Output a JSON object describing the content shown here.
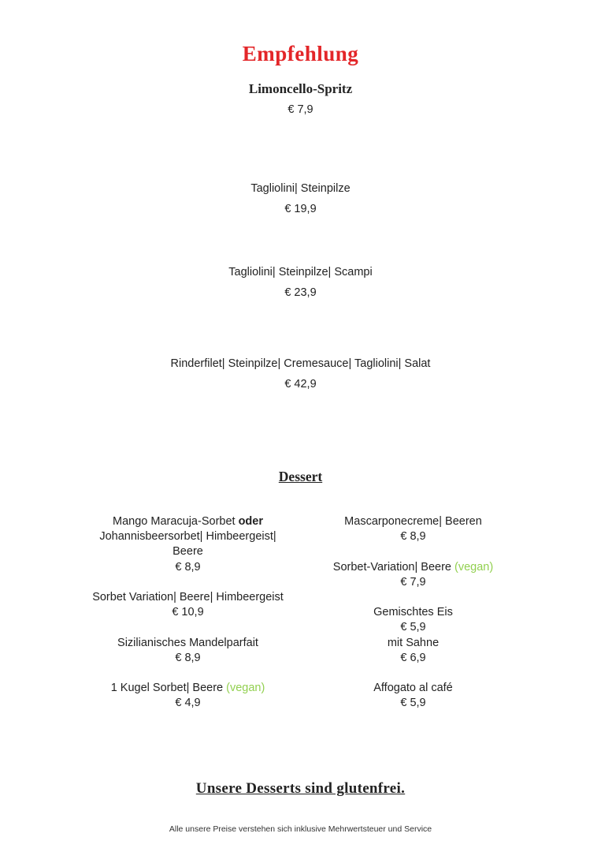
{
  "colors": {
    "accent_red": "#e32629",
    "vegan_green": "#92d050",
    "text": "#222222"
  },
  "header": {
    "title": "Empfehlung"
  },
  "recommendation": {
    "items": [
      {
        "name": "Limoncello-Spritz",
        "price": "€ 7,9"
      },
      {
        "name": "Tagliolini| Steinpilze",
        "price": "€ 19,9"
      },
      {
        "name": "Tagliolini| Steinpilze| Scampi",
        "price": "€ 23,9"
      },
      {
        "name": "Rinderfilet| Steinpilze| Cremesauce| Tagliolini| Salat",
        "price": "€ 42,9"
      }
    ]
  },
  "dessert": {
    "heading": "Dessert",
    "columns": [
      {
        "side": "left",
        "items": [
          {
            "lines": [
              [
                {
                  "t": "Mango Maracuja-Sorbet "
                },
                {
                  "t": "oder",
                  "bold": true
                }
              ],
              [
                {
                  "t": "Johannisbeersorbet| Himbeergeist|"
                }
              ],
              [
                {
                  "t": "Beere"
                }
              ],
              [
                {
                  "t": "€ 8,9"
                }
              ]
            ]
          },
          {
            "lines": [
              [
                {
                  "t": "Sorbet Variation| Beere| Himbeergeist"
                }
              ],
              [
                {
                  "t": "€ 10,9"
                }
              ]
            ]
          },
          {
            "lines": [
              [
                {
                  "t": "Sizilianisches Mandelparfait"
                }
              ],
              [
                {
                  "t": "€ 8,9"
                }
              ]
            ]
          },
          {
            "lines": [
              [
                {
                  "t": "1 Kugel Sorbet| Beere "
                },
                {
                  "t": "(vegan)",
                  "green": true
                }
              ],
              [
                {
                  "t": "€ 4,9"
                }
              ]
            ]
          }
        ]
      },
      {
        "side": "right",
        "items": [
          {
            "lines": [
              [
                {
                  "t": "Mascarponecreme| Beeren"
                }
              ],
              [
                {
                  "t": "€ 8,9"
                }
              ]
            ]
          },
          {
            "lines": [
              [
                {
                  "t": "Sorbet-Variation| Beere "
                },
                {
                  "t": "(vegan)",
                  "green": true
                }
              ],
              [
                {
                  "t": "€ 7,9"
                }
              ]
            ]
          },
          {
            "lines": [
              [
                {
                  "t": "Gemischtes Eis"
                }
              ],
              [
                {
                  "t": "€ 5,9"
                }
              ],
              [
                {
                  "t": "mit Sahne"
                }
              ],
              [
                {
                  "t": "€ 6,9"
                }
              ]
            ]
          },
          {
            "lines": [
              [
                {
                  "t": "Affogato al café"
                }
              ],
              [
                {
                  "t": "€ 5,9"
                }
              ]
            ]
          }
        ]
      }
    ]
  },
  "footer": {
    "glutenfree_note": "Unsere Desserts sind glutenfrei.",
    "price_note": "Alle unsere Preise verstehen sich inklusive Mehrwertsteuer und Service",
    "dot": "."
  }
}
